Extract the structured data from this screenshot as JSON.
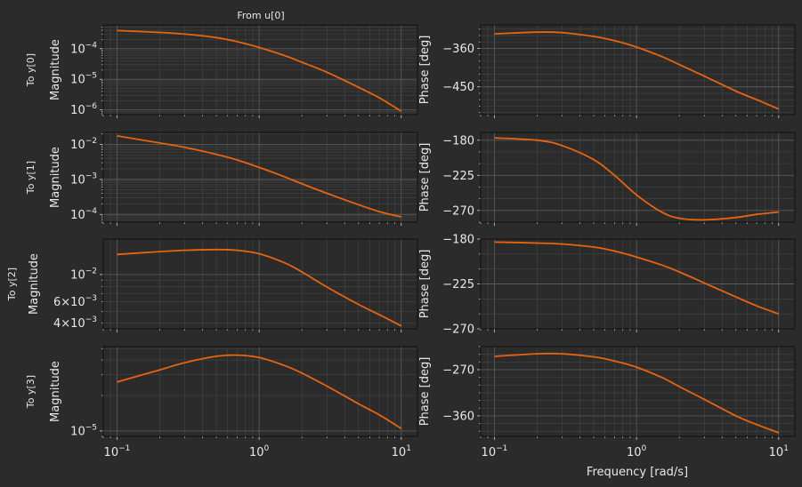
{
  "chart_data": {
    "type": "line",
    "title": "From u[0]",
    "xlabel": "Frequency [rad/s]",
    "x_scale": "log",
    "xlim": [
      0.08,
      13
    ],
    "x_ticks": [
      {
        "value": 0.1,
        "label": "10^-1"
      },
      {
        "value": 1,
        "label": "10^0"
      },
      {
        "value": 10,
        "label": "10^1"
      }
    ],
    "line_color": "#e8640f",
    "grid": true,
    "x": [
      0.1,
      0.2,
      0.3,
      0.5,
      0.7,
      1.0,
      1.5,
      2,
      3,
      5,
      7,
      10
    ],
    "rows": [
      {
        "row_label": "To y[0]",
        "magnitude": {
          "ylabel": "Magnitude",
          "y_scale": "log",
          "ylim": [
            7e-07,
            0.0006
          ],
          "ticks": [
            {
              "value": 0.0001,
              "label": "10^-4"
            },
            {
              "value": 1e-05,
              "label": "10^-5"
            },
            {
              "value": 1e-06,
              "label": "10^-6"
            }
          ],
          "values": [
            0.00039,
            0.00034,
            0.0003,
            0.00023,
            0.00017,
            0.00011,
            6e-05,
            3.6e-05,
            1.7e-05,
            5.5e-06,
            2.5e-06,
            9e-07
          ]
        },
        "phase": {
          "ylabel": "Phase [deg]",
          "ylim": [
            -515,
            -305
          ],
          "ticks": [
            {
              "value": -360,
              "label": "−360"
            },
            {
              "value": -450,
              "label": "−450"
            }
          ],
          "values": [
            -326,
            -322,
            -323,
            -332,
            -342,
            -357,
            -379,
            -398,
            -425,
            -460,
            -480,
            -502
          ]
        }
      },
      {
        "row_label": "To y[1]",
        "magnitude": {
          "ylabel": "Magnitude",
          "y_scale": "log",
          "ylim": [
            6e-05,
            0.022
          ],
          "ticks": [
            {
              "value": 0.01,
              "label": "10^-2"
            },
            {
              "value": 0.001,
              "label": "10^-3"
            },
            {
              "value": 0.0001,
              "label": "10^-4"
            }
          ],
          "values": [
            0.0175,
            0.011,
            0.0082,
            0.0052,
            0.0036,
            0.0022,
            0.0012,
            0.00075,
            0.0004,
            0.00019,
            0.00012,
            8.5e-05
          ]
        },
        "phase": {
          "ylabel": "Phase [deg]",
          "ylim": [
            -285,
            -170
          ],
          "ticks": [
            {
              "value": -180,
              "label": "−180"
            },
            {
              "value": -225,
              "label": "−225"
            },
            {
              "value": -270,
              "label": "−270"
            }
          ],
          "values": [
            -177,
            -180,
            -187,
            -205,
            -225,
            -250,
            -272,
            -280,
            -282,
            -279,
            -275,
            -272
          ]
        }
      },
      {
        "row_label": "To y[2]",
        "magnitude": {
          "ylabel": "Magnitude",
          "y_scale": "log",
          "ylim": [
            0.0036,
            0.0195
          ],
          "ticks": [
            {
              "value": 0.01,
              "label": "10^-2"
            },
            {
              "value": 0.006,
              "label": "6×10^-3"
            },
            {
              "value": 0.004,
              "label": "4×10^-3"
            }
          ],
          "values": [
            0.0146,
            0.0154,
            0.0158,
            0.016,
            0.0158,
            0.0148,
            0.0125,
            0.0105,
            0.0079,
            0.0057,
            0.0047,
            0.0038
          ]
        },
        "phase": {
          "ylabel": "Phase [deg]",
          "ylim": [
            -270,
            -180
          ],
          "ticks": [
            {
              "value": -180,
              "label": "−180"
            },
            {
              "value": -225,
              "label": "−225"
            },
            {
              "value": -270,
              "label": "−270"
            }
          ],
          "values": [
            -183,
            -184,
            -185,
            -188,
            -192,
            -198,
            -206,
            -213,
            -224,
            -238,
            -247,
            -255
          ]
        }
      },
      {
        "row_label": "To y[3]",
        "magnitude": {
          "ylabel": "Magnitude",
          "y_scale": "log",
          "ylim": [
            9e-06,
            5.2e-05
          ],
          "ticks": [
            {
              "value": 1e-05,
              "label": "10^-5"
            }
          ],
          "values": [
            2.6e-05,
            3.3e-05,
            3.8e-05,
            4.3e-05,
            4.4e-05,
            4.2e-05,
            3.6e-05,
            3.1e-05,
            2.4e-05,
            1.7e-05,
            1.37e-05,
            1.05e-05
          ]
        },
        "phase": {
          "ylabel": "Phase [deg]",
          "ylim": [
            -400,
            -225
          ],
          "ticks": [
            {
              "value": -270,
              "label": "−270"
            },
            {
              "value": -360,
              "label": "−360"
            }
          ],
          "values": [
            -244,
            -239,
            -239,
            -245,
            -253,
            -265,
            -285,
            -303,
            -328,
            -360,
            -377,
            -393
          ]
        }
      }
    ]
  }
}
